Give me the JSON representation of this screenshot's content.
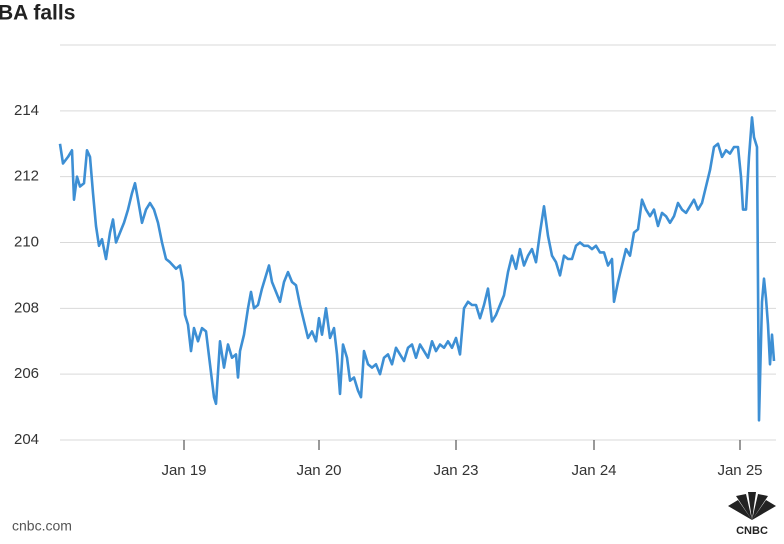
{
  "chart_data": {
    "type": "line",
    "title": "BA falls",
    "source": "cnbc.com",
    "logo": "CNBC",
    "color": "#3d8fd4",
    "grid": true,
    "ylim": [
      204,
      216
    ],
    "yticks": [
      204,
      206,
      208,
      210,
      212,
      214
    ],
    "xlim": [
      0,
      716
    ],
    "xticks": [
      {
        "value": 124,
        "label": "Jan 19"
      },
      {
        "value": 259,
        "label": "Jan 20"
      },
      {
        "value": 396,
        "label": "Jan 23"
      },
      {
        "value": 534,
        "label": "Jan 24"
      },
      {
        "value": 680,
        "label": "Jan 25"
      }
    ],
    "x": [
      0,
      3,
      8,
      12,
      14,
      17,
      20,
      24,
      27,
      30,
      33,
      36,
      39,
      42,
      46,
      50,
      53,
      56,
      60,
      64,
      68,
      72,
      75,
      78,
      82,
      86,
      90,
      94,
      98,
      102,
      106,
      110,
      116,
      120,
      123,
      125,
      128,
      131,
      134,
      138,
      142,
      146,
      150,
      154,
      156,
      160,
      164,
      168,
      172,
      176,
      178,
      180,
      184,
      188,
      191,
      194,
      198,
      202,
      206,
      209,
      212,
      216,
      220,
      224,
      228,
      232,
      236,
      240,
      244,
      248,
      252,
      256,
      259,
      262,
      266,
      270,
      274,
      277,
      280,
      283,
      287,
      290,
      294,
      298,
      301,
      304,
      308,
      312,
      316,
      320,
      324,
      328,
      332,
      336,
      340,
      344,
      348,
      352,
      356,
      360,
      364,
      368,
      372,
      376,
      380,
      384,
      388,
      392,
      396,
      400,
      404,
      408,
      412,
      416,
      420,
      424,
      428,
      432,
      436,
      440,
      444,
      448,
      452,
      456,
      460,
      464,
      468,
      472,
      476,
      480,
      484,
      488,
      492,
      496,
      500,
      504,
      508,
      512,
      516,
      520,
      524,
      528,
      532,
      536,
      540,
      544,
      548,
      552,
      554,
      558,
      562,
      566,
      570,
      574,
      578,
      582,
      586,
      590,
      594,
      598,
      602,
      606,
      610,
      614,
      618,
      622,
      626,
      630,
      634,
      638,
      642,
      646,
      650,
      654,
      658,
      662,
      666,
      670,
      674,
      678,
      681,
      683,
      686,
      689,
      692,
      694,
      697,
      699,
      702,
      704,
      706,
      708,
      710,
      712,
      714
    ],
    "values": [
      213.0,
      212.4,
      212.6,
      212.8,
      211.3,
      212.0,
      211.7,
      211.8,
      212.8,
      212.6,
      211.5,
      210.5,
      209.9,
      210.1,
      209.5,
      210.3,
      210.7,
      210.0,
      210.3,
      210.6,
      211.0,
      211.5,
      211.8,
      211.3,
      210.6,
      211.0,
      211.2,
      211.0,
      210.6,
      210.0,
      209.5,
      209.4,
      209.2,
      209.3,
      208.8,
      207.8,
      207.5,
      206.7,
      207.4,
      207.0,
      207.4,
      207.3,
      206.3,
      205.3,
      205.1,
      207.0,
      206.2,
      206.9,
      206.5,
      206.6,
      205.9,
      206.7,
      207.2,
      208.0,
      208.5,
      208.0,
      208.1,
      208.6,
      209.0,
      209.3,
      208.8,
      208.5,
      208.2,
      208.8,
      209.1,
      208.8,
      208.7,
      208.1,
      207.6,
      207.1,
      207.3,
      207.0,
      207.7,
      207.2,
      208.0,
      207.1,
      207.4,
      206.6,
      205.4,
      206.9,
      206.5,
      205.8,
      205.9,
      205.5,
      205.3,
      206.7,
      206.3,
      206.2,
      206.3,
      206.0,
      206.5,
      206.6,
      206.3,
      206.8,
      206.6,
      206.4,
      206.8,
      206.9,
      206.5,
      206.9,
      206.7,
      206.5,
      207.0,
      206.7,
      206.9,
      206.8,
      207.0,
      206.8,
      207.1,
      206.6,
      208.0,
      208.2,
      208.1,
      208.1,
      207.7,
      208.1,
      208.6,
      207.6,
      207.8,
      208.1,
      208.4,
      209.1,
      209.6,
      209.2,
      209.8,
      209.3,
      209.6,
      209.8,
      209.4,
      210.3,
      211.1,
      210.2,
      209.6,
      209.4,
      209.0,
      209.6,
      209.5,
      209.5,
      209.9,
      210.0,
      209.9,
      209.9,
      209.8,
      209.9,
      209.7,
      209.7,
      209.3,
      209.5,
      208.2,
      208.8,
      209.3,
      209.8,
      209.6,
      210.3,
      210.4,
      211.3,
      211.0,
      210.8,
      211.0,
      210.5,
      210.9,
      210.8,
      210.6,
      210.8,
      211.2,
      211.0,
      210.9,
      211.1,
      211.3,
      211.0,
      211.2,
      211.7,
      212.2,
      212.9,
      213.0,
      212.6,
      212.8,
      212.7,
      212.9,
      212.9,
      212.0,
      211.0,
      211.0,
      212.6,
      213.8,
      213.2,
      212.9,
      204.6,
      208.2,
      208.9,
      208.3,
      207.5,
      206.3,
      207.2,
      206.4
    ]
  }
}
